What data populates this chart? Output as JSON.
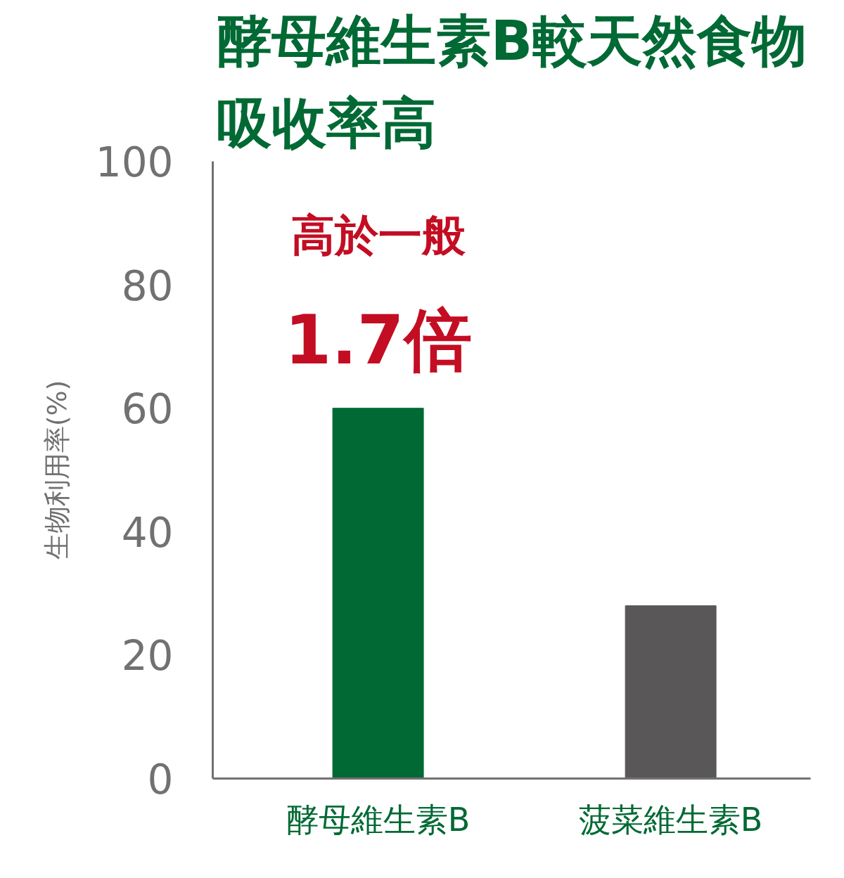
{
  "chart_data": {
    "type": "bar",
    "title": "酵母維生素B較天然食物吸收率高",
    "ylabel": "生物利用率(%)",
    "categories": [
      "酵母維生素B",
      "菠菜維生素B"
    ],
    "values": [
      60,
      28
    ],
    "colors": [
      "#006934",
      "#595757"
    ],
    "ylim": [
      0,
      100
    ],
    "yticks": [
      0,
      20,
      40,
      60,
      80,
      100
    ],
    "grid": false,
    "legend": false,
    "annotations": [
      "高於一般",
      "1.7倍"
    ]
  }
}
